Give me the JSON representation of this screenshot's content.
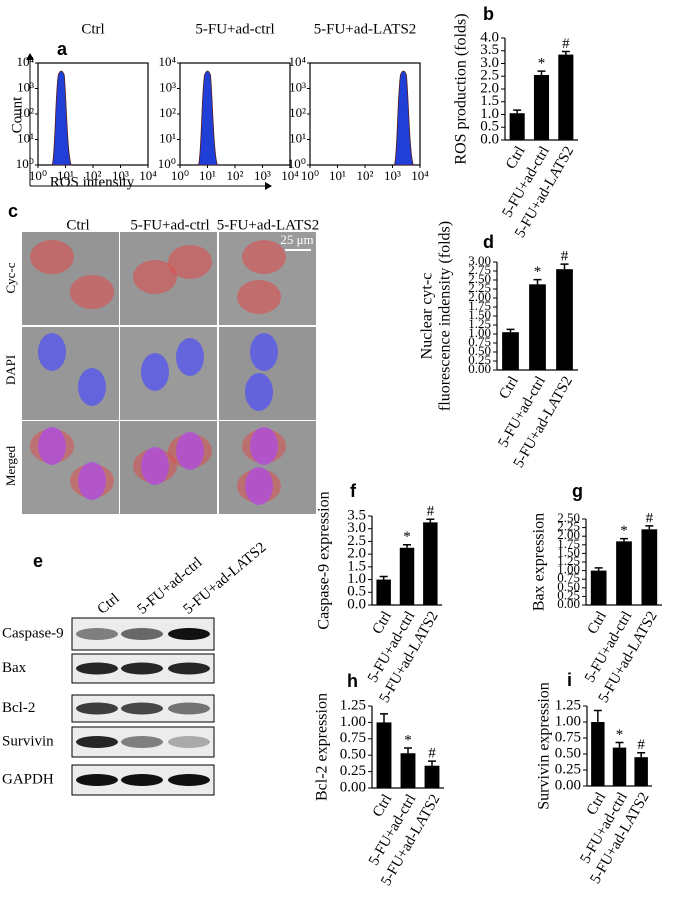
{
  "chart_data": [
    {
      "type": "flow",
      "panel": "a",
      "ylabel": "Count",
      "xlabel": "ROS intensity",
      "log_scale": true,
      "xlim": [
        1,
        10000
      ],
      "ylim": [
        1,
        10000
      ],
      "xticks": [
        {
          "value": 1,
          "label": "10⁰"
        },
        {
          "value": 10,
          "label": "10¹"
        },
        {
          "value": 100,
          "label": "10²"
        },
        {
          "value": 1000,
          "label": "10³"
        },
        {
          "value": 10000,
          "label": "10⁴"
        }
      ],
      "yticks": [
        {
          "value": 1,
          "label": "10⁰"
        },
        {
          "value": 10,
          "label": "10¹"
        },
        {
          "value": 100,
          "label": "10²"
        },
        {
          "value": 1000,
          "label": "10³"
        },
        {
          "value": 10000,
          "label": "10⁴"
        }
      ],
      "series": [
        {
          "name": "Ctrl",
          "color": "#1f3fd6",
          "peak": 7
        },
        {
          "name": "5-FU+ad-ctrl",
          "color": "#1f3fd6",
          "peak": 10
        },
        {
          "name": "5-FU+ad-LATS2",
          "color": "#1f3fd6",
          "peak": 2500
        }
      ]
    },
    {
      "type": "bar",
      "panel": "b",
      "ylabel": "ROS production (folds)",
      "color": "#000000",
      "categories": [
        "Ctrl",
        "5-FU+ad-ctrl",
        "5-FU+ad-LATS2"
      ],
      "values": [
        1.05,
        2.55,
        3.35
      ],
      "errors": [
        0.12,
        0.15,
        0.12
      ],
      "ylim": [
        0,
        4
      ],
      "yticks": [
        {
          "value": 0,
          "label": "0.0"
        },
        0.5,
        {
          "value": 1,
          "label": "1.0"
        },
        1.5,
        {
          "value": 2,
          "label": "2.0"
        },
        2.5,
        {
          "value": 3,
          "label": "3.0"
        },
        3.5,
        {
          "value": 4,
          "label": "4.0"
        }
      ],
      "annotations": [
        {
          "text": "*",
          "x": "5-FU+ad-ctrl"
        },
        {
          "text": "#",
          "x": "5-FU+ad-LATS2"
        }
      ]
    },
    {
      "type": "bar",
      "panel": "d",
      "ylabel": [
        "Nuclear cyt-c",
        "fluorescence indensity (folds)"
      ],
      "color": "#000000",
      "categories": [
        "Ctrl",
        "5-FU+ad-ctrl",
        "5-FU+ad-LATS2"
      ],
      "values": [
        1.05,
        2.38,
        2.8
      ],
      "errors": [
        0.08,
        0.13,
        0.14
      ],
      "ylim": [
        0,
        3
      ],
      "yticks": [
        {
          "value": 0,
          "label": "0.00"
        },
        0.25,
        {
          "value": 0.5,
          "label": "0.50"
        },
        0.75,
        {
          "value": 1,
          "label": "1.00"
        },
        1.25,
        {
          "value": 1.5,
          "label": "1.50"
        },
        1.75,
        {
          "value": 2,
          "label": "2.00"
        },
        2.25,
        {
          "value": 2.5,
          "label": "2.50"
        },
        2.75,
        {
          "value": 3,
          "label": "3.00"
        }
      ],
      "annotations": [
        {
          "text": "*",
          "x": "5-FU+ad-ctrl"
        },
        {
          "text": "#",
          "x": "5-FU+ad-LATS2"
        }
      ]
    },
    {
      "type": "bar",
      "panel": "f",
      "ylabel": "Caspase-9 expression",
      "color": "#000000",
      "categories": [
        "Ctrl",
        "5-FU+ad-ctrl",
        "5-FU+ad-LATS2"
      ],
      "values": [
        1.0,
        2.25,
        3.25
      ],
      "errors": [
        0.12,
        0.12,
        0.12
      ],
      "ylim": [
        0,
        3.5
      ],
      "yticks": [
        {
          "value": 0,
          "label": "0.0"
        },
        0.5,
        {
          "value": 1,
          "label": "1.0"
        },
        1.5,
        {
          "value": 2,
          "label": "2.0"
        },
        2.5,
        {
          "value": 3,
          "label": "3.0"
        },
        3.5
      ],
      "annotations": [
        {
          "text": "*",
          "x": "5-FU+ad-ctrl"
        },
        {
          "text": "#",
          "x": "5-FU+ad-LATS2"
        }
      ]
    },
    {
      "type": "bar",
      "panel": "g",
      "ylabel": "Bax expression",
      "color": "#000000",
      "categories": [
        "Ctrl",
        "5-FU+ad-ctrl",
        "5-FU+ad-LATS2"
      ],
      "values": [
        1.0,
        1.85,
        2.2
      ],
      "errors": [
        0.08,
        0.08,
        0.1
      ],
      "ylim": [
        0,
        2.5
      ],
      "yticks": [
        {
          "value": 0,
          "label": "0.00"
        },
        0.25,
        {
          "value": 0.5,
          "label": "0.50"
        },
        0.75,
        {
          "value": 1,
          "label": "1.00"
        },
        1.25,
        {
          "value": 1.5,
          "label": "1.50"
        },
        1.75,
        {
          "value": 2,
          "label": "2.00"
        },
        2.25,
        {
          "value": 2.5,
          "label": "2.50"
        }
      ],
      "annotations": [
        {
          "text": "*",
          "x": "5-FU+ad-ctrl"
        },
        {
          "text": "#",
          "x": "5-FU+ad-LATS2"
        }
      ]
    },
    {
      "type": "bar",
      "panel": "h",
      "ylabel": "Bcl-2 expression",
      "color": "#000000",
      "categories": [
        "Ctrl",
        "5-FU+ad-ctrl",
        "5-FU+ad-LATS2"
      ],
      "values": [
        1.0,
        0.53,
        0.34
      ],
      "errors": [
        0.13,
        0.08,
        0.07
      ],
      "ylim": [
        0,
        1.25
      ],
      "yticks": [
        {
          "value": 0,
          "label": "0.00"
        },
        0.25,
        {
          "value": 0.5,
          "label": "0.50"
        },
        0.75,
        {
          "value": 1,
          "label": "1.00"
        },
        1.25
      ],
      "annotations": [
        {
          "text": "*",
          "x": "5-FU+ad-ctrl"
        },
        {
          "text": "#",
          "x": "5-FU+ad-LATS2"
        }
      ]
    },
    {
      "type": "bar",
      "panel": "i",
      "ylabel": "Survivin expression",
      "color": "#000000",
      "categories": [
        "Ctrl",
        "5-FU+ad-ctrl",
        "5-FU+ad-LATS2"
      ],
      "values": [
        1.0,
        0.6,
        0.45
      ],
      "errors": [
        0.18,
        0.08,
        0.07
      ],
      "ylim": [
        0,
        1.25
      ],
      "yticks": [
        {
          "value": 0,
          "label": "0.00"
        },
        0.25,
        {
          "value": 0.5,
          "label": "0.50"
        },
        0.75,
        {
          "value": 1,
          "label": "1.00"
        },
        1.25
      ],
      "annotations": [
        {
          "text": "*",
          "x": "5-FU+ad-ctrl"
        },
        {
          "text": "#",
          "x": "5-FU+ad-LATS2"
        }
      ]
    }
  ],
  "microscopy": {
    "panel": "c",
    "columns": [
      "Ctrl",
      "5-FU+ad-ctrl",
      "5-FU+ad-LATS2"
    ],
    "rows": [
      "Cyc-c",
      "DAPI",
      "Merged"
    ],
    "scale_bar": "25 μm"
  },
  "western_blot": {
    "panel": "e",
    "columns": [
      "Ctrl",
      "5-FU+ad-ctrl",
      "5-FU+ad-LATS2"
    ],
    "rows": [
      "Caspase-9",
      "Bax",
      "Bcl-2",
      "Survivin",
      "GAPDH"
    ]
  }
}
